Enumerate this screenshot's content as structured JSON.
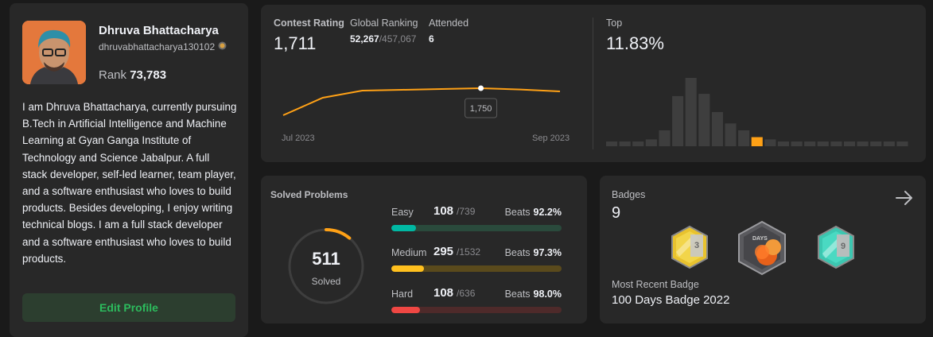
{
  "profile": {
    "name": "Dhruva Bhattacharya",
    "username": "dhruvabhattacharya130102",
    "rank_label": "Rank",
    "rank_value": "73,783",
    "bio": "I am Dhruva Bhattacharya, currently pursuing B.Tech in Artificial Intelligence and Machine Learning at Gyan Ganga Institute of Technology and Science Jabalpur. A full stack developer, self-led learner, team player, and a software enthusiast who loves to build products. Besides developing, I enjoy writing technical blogs. I am a full stack developer and a software enthusiast who loves to build products.",
    "edit_button": "Edit Profile"
  },
  "contest": {
    "rating_label": "Contest Rating",
    "rating_value": "1,711",
    "global_label": "Global Ranking",
    "global_value": "52,267",
    "global_total": "/457,067",
    "attended_label": "Attended",
    "attended_value": "6",
    "top_label": "Top",
    "top_value": "11.83%",
    "x_start": "Jul 2023",
    "x_end": "Sep 2023",
    "tooltip": "1,750",
    "accent": "#ffa116"
  },
  "solved": {
    "title": "Solved Problems",
    "count": "511",
    "count_label": "Solved",
    "easy": {
      "label": "Easy",
      "count": "108",
      "total": "/739",
      "beats_label": "Beats",
      "beats": "92.2%",
      "fraction": 0.146,
      "color": "#00b8a3",
      "track": "#2a4a3c"
    },
    "medium": {
      "label": "Medium",
      "count": "295",
      "total": "/1532",
      "beats_label": "Beats",
      "beats": "97.3%",
      "fraction": 0.193,
      "color": "#ffc01e",
      "track": "#5a4a1c"
    },
    "hard": {
      "label": "Hard",
      "count": "108",
      "total": "/636",
      "beats_label": "Beats",
      "beats": "98.0%",
      "fraction": 0.17,
      "color": "#ef4743",
      "track": "#4e2a2a"
    }
  },
  "badges": {
    "title": "Badges",
    "count": "9",
    "recent_label": "Most Recent Badge",
    "recent_value": "100 Days Badge 2022",
    "badge1_text": "3",
    "badge2_text": "DAYS",
    "badge3_text": "9"
  },
  "chart_data": [
    {
      "type": "line",
      "x": [
        "Jul 2023",
        "",
        "",
        "",
        "",
        "",
        "",
        "Sep 2023"
      ],
      "values": [
        1580,
        1690,
        1735,
        1740,
        1745,
        1750,
        1742,
        1730
      ],
      "highlight_value": 1750,
      "xlabel": "",
      "ylabel": "",
      "grid": false
    },
    {
      "type": "bar",
      "values": [
        2,
        2,
        2,
        3,
        7,
        22,
        30,
        23,
        15,
        10,
        7,
        4,
        3,
        2,
        2,
        2,
        2,
        2,
        2,
        2,
        2,
        2,
        2
      ],
      "highlight_index": 11,
      "grid": false
    }
  ]
}
